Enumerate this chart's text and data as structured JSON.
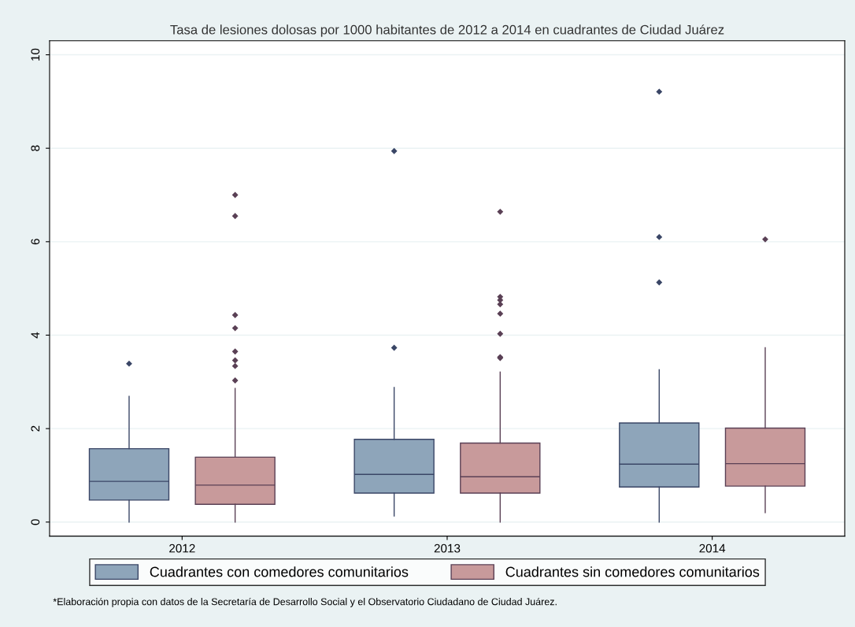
{
  "chart_data": {
    "type": "box",
    "title": "Tasa de lesiones dolosas por 1000 habitantes de 2012 a 2014 en cuadrantes de Ciudad Juárez",
    "categories": [
      "2012",
      "2013",
      "2014"
    ],
    "series": [
      {
        "name": "Cuadrantes con comedores comunitarios",
        "color": "#8ea5ba",
        "boxes": [
          {
            "low": 0,
            "q1": 0.47,
            "median": 0.87,
            "q3": 1.57,
            "high": 2.69,
            "outliers": [
              3.39
            ]
          },
          {
            "low": 0.13,
            "q1": 0.62,
            "median": 1.02,
            "q3": 1.77,
            "high": 2.88,
            "outliers": [
              7.94,
              3.73
            ]
          },
          {
            "low": 0,
            "q1": 0.75,
            "median": 1.24,
            "q3": 2.12,
            "high": 3.26,
            "outliers": [
              9.21,
              6.1,
              5.13
            ]
          }
        ]
      },
      {
        "name": "Cuadrantes sin comedores comunitarios",
        "color": "#c89a9b",
        "boxes": [
          {
            "low": 0,
            "q1": 0.38,
            "median": 0.79,
            "q3": 1.39,
            "high": 2.86,
            "outliers": [
              7.0,
              6.55,
              4.43,
              4.15,
              3.65,
              3.46,
              3.34,
              3.03
            ]
          },
          {
            "low": 0,
            "q1": 0.62,
            "median": 0.97,
            "q3": 1.69,
            "high": 3.21,
            "outliers": [
              6.64,
              4.82,
              4.75,
              4.66,
              4.46,
              4.03,
              3.53,
              3.51
            ]
          },
          {
            "low": 0.2,
            "q1": 0.77,
            "median": 1.25,
            "q3": 2.01,
            "high": 3.73,
            "outliers": [
              6.05
            ]
          }
        ]
      }
    ],
    "ylim": [
      -0.3,
      10.3
    ],
    "yticks": [
      0,
      2,
      4,
      6,
      8,
      10
    ],
    "grid": "y",
    "legend": "bottom",
    "annotations": [
      "*Elaboración propia con datos de la Secretaría de Desarrollo Social y el Observatorio Ciudadano de Ciudad Juárez."
    ]
  }
}
